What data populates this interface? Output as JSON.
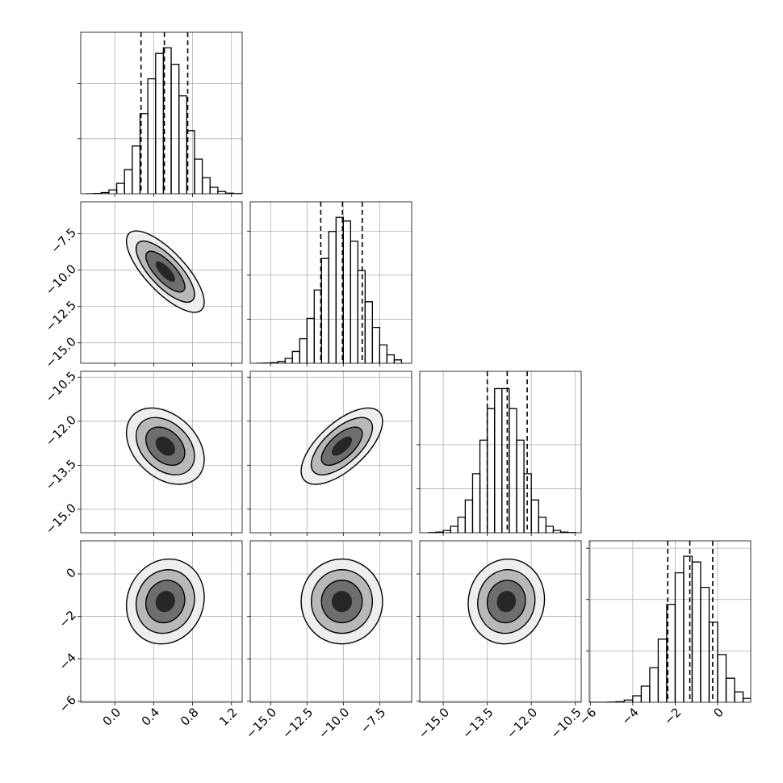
{
  "chart_data": {
    "type": "corner",
    "grid": true,
    "hist_ylim": [
      0,
      1100
    ],
    "contour_levels": [
      0.5,
      1,
      1.5,
      2
    ],
    "contour_colors": [
      "#262626",
      "#6e6e6e",
      "#b8b8b8",
      "#eeeeee"
    ],
    "line_color": "#000000",
    "params": [
      {
        "lim": [
          -0.35,
          1.31
        ],
        "ticks": [
          {
            "value": 0,
            "label": "0.0"
          },
          0.4,
          0.8,
          1.2
        ],
        "mean": 0.52,
        "sd": 0.2,
        "bins": [
          -0.3,
          -0.22,
          -0.14,
          -0.06,
          0.02,
          0.1,
          0.18,
          0.26,
          0.34,
          0.42,
          0.5,
          0.58,
          0.66,
          0.74,
          0.82,
          0.9,
          0.98,
          1.06,
          1.14,
          1.22,
          1.3
        ],
        "counts": [
          0,
          2,
          8,
          26,
          71,
          164,
          325,
          546,
          783,
          956,
          995,
          882,
          667,
          430,
          236,
          110,
          44,
          15,
          4,
          1
        ],
        "hist_yticks": [
          375,
          750
        ],
        "quantiles": [
          0.27,
          0.51,
          0.75
        ]
      },
      {
        "lim": [
          -16.4,
          -5.3
        ],
        "ticks": [
          {
            "value": -15,
            "label": "−15.0"
          },
          {
            "value": -12.5,
            "label": "−12.5"
          },
          {
            "value": -10,
            "label": "−10.0"
          },
          {
            "value": -7.5,
            "label": "−7.5"
          }
        ],
        "mean": -10.1,
        "sd": 1.4,
        "bins": [
          -16,
          -15.5,
          -15,
          -14.5,
          -14,
          -13.5,
          -13,
          -12.5,
          -12,
          -11.5,
          -11,
          -10.5,
          -10,
          -9.5,
          -9,
          -8.5,
          -8,
          -7.5,
          -7,
          -6.5,
          -6
        ],
        "counts": [
          0,
          1,
          4,
          12,
          33,
          80,
          167,
          306,
          499,
          714,
          898,
          994,
          969,
          831,
          631,
          419,
          244,
          125,
          57,
          23
        ],
        "hist_yticks": [
          300,
          600,
          900
        ],
        "quantiles": [
          -11.55,
          -10.06,
          -8.7
        ]
      },
      {
        "lim": [
          -15.8,
          -10.3
        ],
        "ticks": [
          {
            "value": -15,
            "label": "−15.0"
          },
          {
            "value": -13.5,
            "label": "−13.5"
          },
          {
            "value": -12,
            "label": "−12.0"
          },
          {
            "value": -10.5,
            "label": "−10.5"
          }
        ],
        "mean": -12.85,
        "sd": 0.65,
        "bins": [
          -15.5,
          -15.25,
          -15,
          -14.75,
          -14.5,
          -14.25,
          -14,
          -13.75,
          -13.5,
          -13.25,
          -13,
          -12.75,
          -12.5,
          -12.25,
          -12,
          -11.75,
          -11.5,
          -11.25,
          -11,
          -10.75,
          -10.5
        ],
        "counts": [
          1,
          5,
          16,
          44,
          106,
          223,
          402,
          631,
          846,
          982,
          982,
          846,
          631,
          402,
          223,
          106,
          44,
          16,
          5,
          1
        ],
        "hist_yticks": [
          300,
          600
        ],
        "quantiles": [
          -13.5,
          -12.82,
          -12.14
        ]
      },
      {
        "lim": [
          -6.05,
          1.56
        ],
        "ticks": [
          {
            "value": -6,
            "label": "−6"
          },
          {
            "value": -4,
            "label": "−4"
          },
          {
            "value": -2,
            "label": "−2"
          },
          0
        ],
        "mean": -1.3,
        "sd": 1.0,
        "bins": [
          -6.4,
          -6,
          -5.6,
          -5.2,
          -4.8,
          -4.4,
          -4,
          -3.6,
          -3.2,
          -2.8,
          -2.4,
          -2,
          -1.6,
          -1.2,
          -0.8,
          -0.4,
          0,
          0.4,
          0.8,
          1.2,
          1.6
        ],
        "counts": [
          0,
          0,
          0,
          1,
          4,
          15,
          44,
          110,
          236,
          430,
          667,
          882,
          995,
          956,
          783,
          546,
          325,
          164,
          71,
          26
        ],
        "hist_yticks": [
          350,
          700,
          1050
        ],
        "quantiles": [
          -2.35,
          -1.31,
          -0.23
        ]
      }
    ],
    "correlations": [
      -0.75,
      -0.35,
      0.65,
      0.1,
      0.0,
      0.05
    ]
  }
}
